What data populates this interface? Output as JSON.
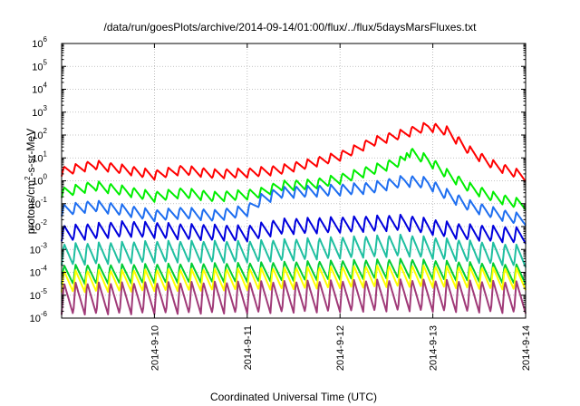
{
  "chart_data": {
    "type": "line",
    "title": "/data/run/goesPlots/archive/2014-09-14/01:00/flux/../flux/5daysMarsFluxes.txt",
    "xlabel": "Coordinated Universal Time (UTC)",
    "ylabel": {
      "prefix": "protons/cm",
      "sup": "2",
      "suffix": "-s-sr-MeV"
    },
    "yscale": "log",
    "ylim": [
      1e-06,
      1000000.0
    ],
    "xlim": [
      "2014-09-09 01:00",
      "2014-09-14 01:00"
    ],
    "grid": true,
    "legend": false,
    "x_ticks": [
      {
        "day": 1,
        "label": "2014-9-10"
      },
      {
        "day": 2,
        "label": "2014-9-11"
      },
      {
        "day": 3,
        "label": "2014-9-12"
      },
      {
        "day": 4,
        "label": "2014-9-13"
      },
      {
        "day": 5,
        "label": "2014-9-14"
      }
    ],
    "y_ticks": [
      {
        "exp": -6,
        "base": "10",
        "sup": "-6"
      },
      {
        "exp": -5,
        "base": "10",
        "sup": "-5"
      },
      {
        "exp": -4,
        "base": "10",
        "sup": "-4"
      },
      {
        "exp": -3,
        "base": "10",
        "sup": "-3"
      },
      {
        "exp": -2,
        "base": "10",
        "sup": "-2"
      },
      {
        "exp": -1,
        "base": "10",
        "sup": "-1"
      },
      {
        "exp": 0,
        "base": "10",
        "sup": "0"
      },
      {
        "exp": 1,
        "base": "10",
        "sup": "1"
      },
      {
        "exp": 2,
        "base": "10",
        "sup": "2"
      },
      {
        "exp": 3,
        "base": "10",
        "sup": "3"
      },
      {
        "exp": 4,
        "base": "10",
        "sup": "4"
      },
      {
        "exp": 5,
        "base": "10",
        "sup": "5"
      },
      {
        "exp": 6,
        "base": "10",
        "sup": "6"
      }
    ],
    "series": [
      {
        "color": "#ff0000",
        "x_day": [
          0.0,
          0.35,
          0.7,
          1.0,
          1.3,
          1.65,
          2.0,
          2.35,
          2.7,
          3.0,
          3.35,
          3.7,
          3.95,
          4.15,
          4.4,
          4.65,
          4.85,
          5.0
        ],
        "y": [
          2.5,
          5,
          3,
          1.8,
          3,
          2,
          2.2,
          3,
          6,
          12,
          50,
          120,
          240,
          150,
          20,
          5,
          2.5,
          1.5
        ],
        "amp": 2.6
      },
      {
        "color": "#00ee00",
        "x_day": [
          0.0,
          0.35,
          0.7,
          1.0,
          1.3,
          1.65,
          2.0,
          2.15,
          2.35,
          2.7,
          3.0,
          3.35,
          3.7,
          3.72,
          3.95,
          4.15,
          4.4,
          4.65,
          4.85,
          5.0
        ],
        "y": [
          0.3,
          0.6,
          0.35,
          0.2,
          0.3,
          0.2,
          0.25,
          0.3,
          0.6,
          0.7,
          1.2,
          3,
          8,
          20,
          8,
          2,
          0.5,
          0.2,
          0.12,
          0.09
        ],
        "amp": 2.8
      },
      {
        "color": "#1e6ef0",
        "x_day": [
          0.0,
          0.35,
          0.7,
          1.0,
          1.3,
          1.65,
          2.0,
          2.15,
          2.35,
          2.7,
          3.0,
          3.35,
          3.7,
          3.95,
          4.15,
          4.4,
          4.65,
          4.85,
          5.0
        ],
        "y": [
          0.05,
          0.08,
          0.05,
          0.03,
          0.04,
          0.03,
          0.05,
          0.15,
          0.3,
          0.35,
          0.4,
          0.5,
          1.0,
          0.8,
          0.25,
          0.08,
          0.04,
          0.025,
          0.02
        ],
        "amp": 3.2
      },
      {
        "color": "#0000dd",
        "x_day": [
          0.0,
          0.7,
          1.3,
          2.0,
          2.35,
          3.0,
          3.7,
          4.3,
          5.0
        ],
        "y": [
          0.005,
          0.008,
          0.006,
          0.005,
          0.01,
          0.012,
          0.015,
          0.006,
          0.004
        ],
        "amp": 5
      },
      {
        "color": "#1fbfa0",
        "x_day": [
          0.0,
          1.0,
          2.0,
          3.0,
          3.7,
          4.3,
          5.0
        ],
        "y": [
          0.0006,
          0.0008,
          0.0008,
          0.0012,
          0.0015,
          0.0009,
          0.0005
        ],
        "amp": 9
      },
      {
        "color": "#00cc33",
        "x_day": [
          0.0,
          2.0,
          3.7,
          5.0
        ],
        "y": [
          8e-05,
          0.0001,
          0.00015,
          8e-05
        ],
        "amp": 7
      },
      {
        "color": "#ffff00",
        "x_day": [
          0.0,
          2.0,
          3.7,
          5.0
        ],
        "y": [
          4e-05,
          5e-05,
          7e-05,
          5e-05
        ],
        "amp": 9
      },
      {
        "color": "#a03a78",
        "x_day": [
          0.0,
          2.0,
          3.7,
          5.0
        ],
        "y": [
          7e-06,
          8e-06,
          1e-05,
          8e-06
        ],
        "amp": 25
      }
    ]
  }
}
